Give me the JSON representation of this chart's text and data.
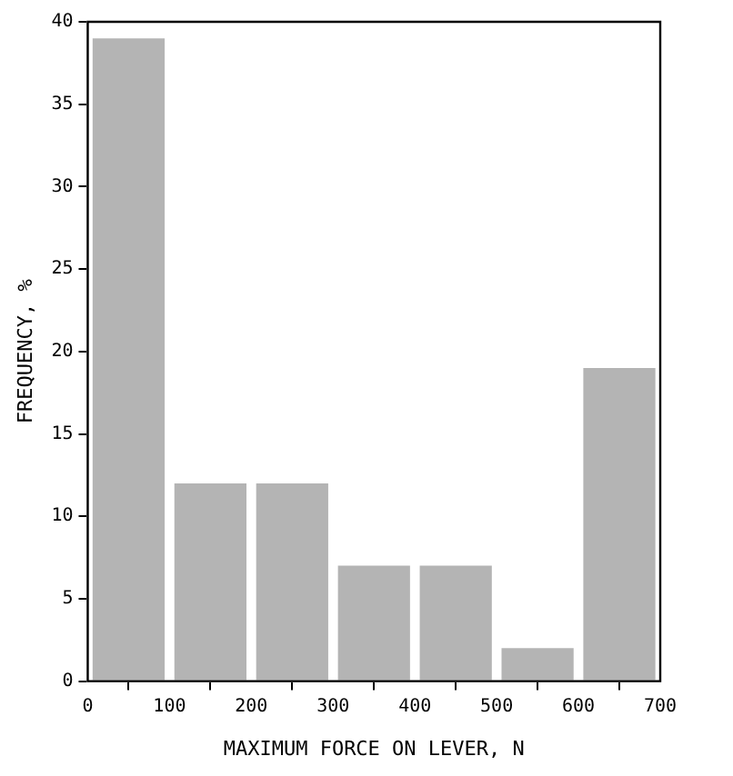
{
  "chart_data": {
    "type": "histogram",
    "xlabel": "MAXIMUM FORCE ON LEVER, N",
    "ylabel": "FREQUENCY, %",
    "bins": [
      0,
      100,
      200,
      300,
      400,
      500,
      600,
      700
    ],
    "values": [
      39,
      12,
      12,
      7,
      7,
      2,
      19
    ],
    "color": "#b4b4b4",
    "xlim": [
      0,
      700
    ],
    "xticks": [
      0,
      100,
      200,
      300,
      400,
      500,
      600,
      700
    ],
    "ylim": [
      0,
      40
    ],
    "yticks": [
      0,
      5,
      10,
      15,
      20,
      25,
      30,
      35,
      40
    ],
    "grid": false,
    "legend": false
  }
}
